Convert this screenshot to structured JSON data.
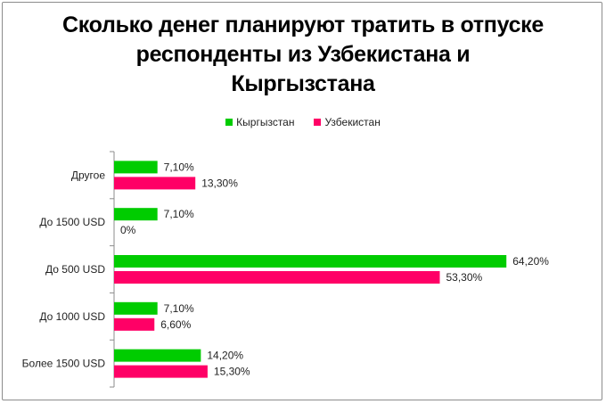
{
  "chart_data": {
    "type": "bar",
    "orientation": "horizontal",
    "title_lines": [
      "Сколько денег планируют тратить в отпуске",
      "респонденты из Узбекистана и",
      "Кыргызстана"
    ],
    "categories": [
      "Другое",
      "До 1500 USD",
      "До 500 USD",
      "До 1000 USD",
      "Более 1500 USD"
    ],
    "series": [
      {
        "name": "Кыргызстан",
        "color": "#00cc00",
        "values": [
          7.1,
          7.1,
          64.2,
          7.1,
          14.2
        ],
        "labels": [
          "7,10%",
          "7,10%",
          "64,20%",
          "7,10%",
          "14,20%"
        ]
      },
      {
        "name": "Узбекистан",
        "color": "#ff0066",
        "values": [
          13.3,
          0,
          53.3,
          6.6,
          15.3
        ],
        "labels": [
          "13,30%",
          "0%",
          "53,30%",
          "6,60%",
          "15,30%"
        ]
      }
    ],
    "xlim": [
      0,
      70
    ],
    "legend_position": "top",
    "grid": false
  }
}
